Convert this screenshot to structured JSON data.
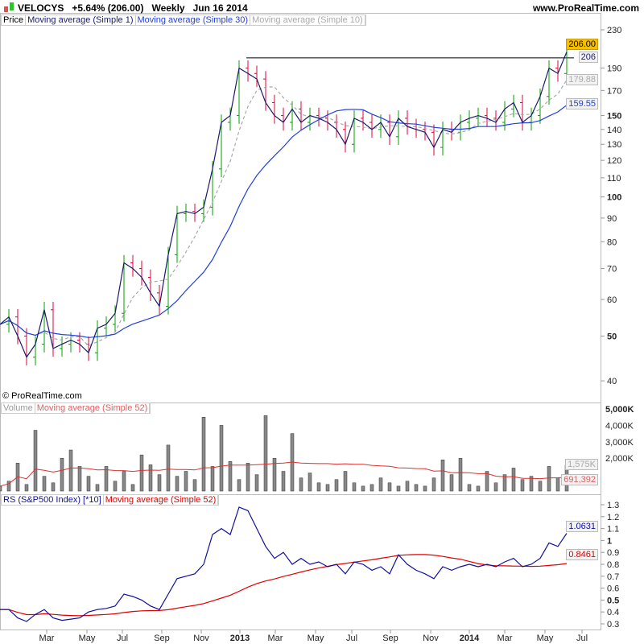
{
  "header": {
    "symbol": "VELOCYS",
    "change": "+5.64% (206.00)",
    "period": "Weekly",
    "date": "Jun 16 2014",
    "site": "www.ProRealTime.com",
    "copyright": "© ProRealTime.com"
  },
  "legends": {
    "price": [
      "Price",
      "Moving average (Simple 1)",
      "Moving average (Simple 30)",
      "Moving average (Simple 10)"
    ],
    "volume": [
      "Volume",
      "Moving average (Simple 52)"
    ],
    "rs": [
      "RS (S&P500 Index) [*10]",
      "Moving average (Simple 52)"
    ]
  },
  "tags": {
    "price": "206.00",
    "ma1": "206",
    "ma10": "179.88",
    "ma30": "159.55",
    "volume": "1,575K",
    "vol_ma": "691,392",
    "rs": "1.0631",
    "rs_ma": "0.8461"
  },
  "colors": {
    "up": "#00a000",
    "down": "#e0003c",
    "ma1": "#1a1a6e",
    "ma30": "#2040e0",
    "ma10": "#aaaaaa",
    "vol_ma": "#e03030",
    "rs": "#1010a0",
    "rs_ma": "#e00000",
    "price_tag": "#f5c000"
  },
  "chart_data": [
    {
      "type": "line",
      "title": "Price",
      "yscale": "log",
      "ylim": [
        38,
        235
      ],
      "yticks": [
        230,
        190,
        170,
        150,
        140,
        130,
        120,
        110,
        100,
        90,
        80,
        70,
        60,
        50,
        40
      ],
      "xticks": [
        "Mar",
        "May",
        "Jul",
        "Sep",
        "Nov",
        "2013",
        "Mar",
        "May",
        "Jul",
        "Sep",
        "Nov",
        "2014",
        "Mar",
        "May",
        "Jul"
      ],
      "resistance": 200,
      "close": [
        53,
        55,
        50,
        45,
        48,
        57,
        47,
        48,
        49,
        48,
        46,
        52,
        53,
        56,
        72,
        70,
        67,
        62,
        58,
        75,
        92,
        93,
        92,
        95,
        115,
        145,
        150,
        190,
        185,
        180,
        160,
        150,
        145,
        155,
        145,
        150,
        148,
        145,
        140,
        130,
        148,
        145,
        140,
        145,
        135,
        148,
        142,
        140,
        138,
        128,
        140,
        138,
        145,
        148,
        150,
        148,
        145,
        155,
        160,
        145,
        150,
        165,
        190,
        185,
        206
      ]
    },
    {
      "type": "bar",
      "title": "Volume",
      "ylim": [
        0,
        5000
      ],
      "yticks": [
        "5,000K",
        "4,000K",
        "3,000K",
        "2,000K"
      ],
      "values": [
        300,
        600,
        1700,
        400,
        3700,
        900,
        500,
        2000,
        2500,
        1500,
        900,
        400,
        1500,
        600,
        1200,
        400,
        2200,
        1600,
        1000,
        2800,
        900,
        1200,
        700,
        4500,
        1500,
        4000,
        1800,
        700,
        1700,
        1000,
        4600,
        2000,
        1200,
        3500,
        800,
        1100,
        500,
        400,
        700,
        1200,
        500,
        300,
        400,
        800,
        500,
        300,
        600,
        400,
        300,
        800,
        1900,
        1000,
        2000,
        400,
        300,
        1200,
        500,
        1000,
        1400,
        700,
        900,
        600,
        1500,
        800,
        1575
      ]
    },
    {
      "type": "line",
      "title": "RS (S&P500 Index) [*10]",
      "ylim": [
        0.25,
        1.35
      ],
      "yticks": [
        1.3,
        1.2,
        1.1,
        1,
        0.9,
        0.8,
        0.7,
        0.6,
        0.5,
        0.4,
        0.3
      ],
      "values": [
        0.42,
        0.42,
        0.35,
        0.32,
        0.38,
        0.42,
        0.35,
        0.33,
        0.34,
        0.35,
        0.4,
        0.42,
        0.43,
        0.45,
        0.55,
        0.53,
        0.5,
        0.45,
        0.42,
        0.55,
        0.68,
        0.7,
        0.72,
        0.8,
        1.05,
        1.1,
        1.05,
        1.28,
        1.25,
        1.1,
        0.95,
        0.85,
        0.9,
        0.8,
        0.85,
        0.8,
        0.82,
        0.78,
        0.8,
        0.72,
        0.82,
        0.8,
        0.75,
        0.78,
        0.72,
        0.88,
        0.8,
        0.75,
        0.72,
        0.68,
        0.78,
        0.75,
        0.78,
        0.8,
        0.78,
        0.8,
        0.78,
        0.82,
        0.85,
        0.78,
        0.8,
        0.85,
        0.98,
        0.95,
        1.06
      ]
    }
  ]
}
